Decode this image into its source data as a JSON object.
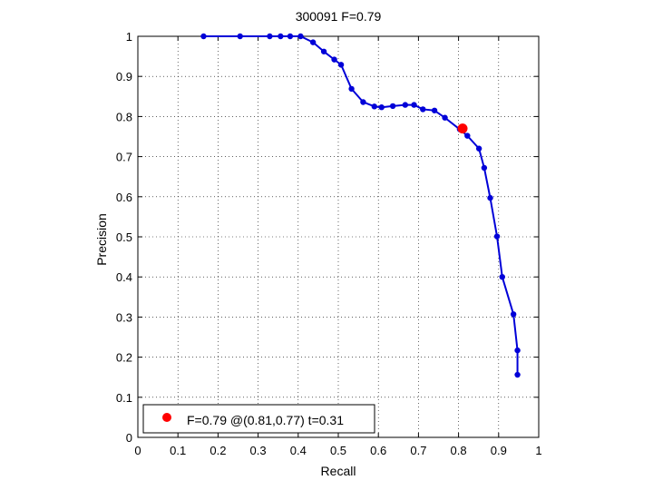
{
  "chart_data": {
    "type": "line",
    "title": "300091 F=0.79",
    "xlabel": "Recall",
    "ylabel": "Precision",
    "xlim": [
      0,
      1
    ],
    "ylim": [
      0,
      1
    ],
    "grid": true,
    "xticks": [
      "0",
      "0.1",
      "0.2",
      "0.3",
      "0.4",
      "0.5",
      "0.6",
      "0.7",
      "0.8",
      "0.9",
      "1"
    ],
    "yticks": [
      "0",
      "0.1",
      "0.2",
      "0.3",
      "0.4",
      "0.5",
      "0.6",
      "0.7",
      "0.8",
      "0.9",
      "1"
    ],
    "series": [
      {
        "color": "#0000d8",
        "x": [
          0.164,
          0.255,
          0.329,
          0.356,
          0.38,
          0.406,
          0.437,
          0.464,
          0.49,
          0.507,
          0.533,
          0.562,
          0.59,
          0.608,
          0.636,
          0.667,
          0.689,
          0.711,
          0.74,
          0.766,
          0.803,
          0.822,
          0.851,
          0.864,
          0.879,
          0.896,
          0.909,
          0.937,
          0.947,
          0.947
        ],
        "y": [
          1.0,
          1.0,
          1.0,
          1.0,
          1.0,
          1.0,
          0.985,
          0.962,
          0.942,
          0.929,
          0.869,
          0.836,
          0.825,
          0.823,
          0.826,
          0.829,
          0.829,
          0.818,
          0.815,
          0.797,
          0.768,
          0.752,
          0.72,
          0.672,
          0.597,
          0.501,
          0.4,
          0.307,
          0.217,
          0.156
        ]
      }
    ],
    "highlight_point": {
      "x": 0.81,
      "y": 0.77,
      "color": "#ff0000"
    },
    "legend": {
      "location": "bottom-left",
      "entries": [
        "F=0.79 @(0.81,0.77) t=0.31"
      ]
    }
  }
}
